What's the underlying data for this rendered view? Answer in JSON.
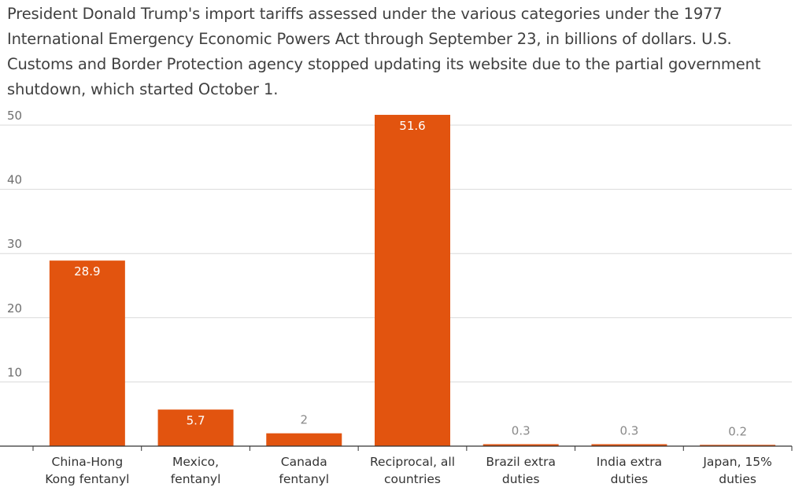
{
  "chart_data": {
    "type": "bar",
    "title": "",
    "subtitle": "President Donald Trump's import tariffs assessed under the various categories under the 1977 International Emergency Economic Powers Act through September 23, in billions of dollars. U.S. Customs and Border Protection agency stopped updating its website due to the partial government shutdown, which started October 1.",
    "xlabel": "",
    "ylabel": "",
    "ylim": [
      0,
      50
    ],
    "yticks": [
      10,
      20,
      30,
      40,
      50
    ],
    "grid": true,
    "legend": "none",
    "categories": [
      "China-Hong Kong fentanyl",
      "Mexico, fentanyl",
      "Canada fentanyl",
      "Reciprocal, all countries",
      "Brazil extra duties",
      "India extra duties",
      "Japan, 15% duties"
    ],
    "category_lines": [
      [
        "China-Hong",
        "Kong fentanyl"
      ],
      [
        "Mexico,",
        "fentanyl"
      ],
      [
        "Canada",
        "fentanyl"
      ],
      [
        "Reciprocal, all",
        "countries"
      ],
      [
        "Brazil extra",
        "duties"
      ],
      [
        "India extra",
        "duties"
      ],
      [
        "Japan, 15%",
        "duties"
      ]
    ],
    "values": [
      28.9,
      5.7,
      2,
      51.6,
      0.3,
      0.3,
      0.2
    ],
    "value_labels": [
      "28.9",
      "5.7",
      "2",
      "51.6",
      "0.3",
      "0.3",
      "0.2"
    ],
    "colors": {
      "bar": "#e2540f",
      "grid": "#d9d9d9",
      "axis": "#333333"
    }
  }
}
